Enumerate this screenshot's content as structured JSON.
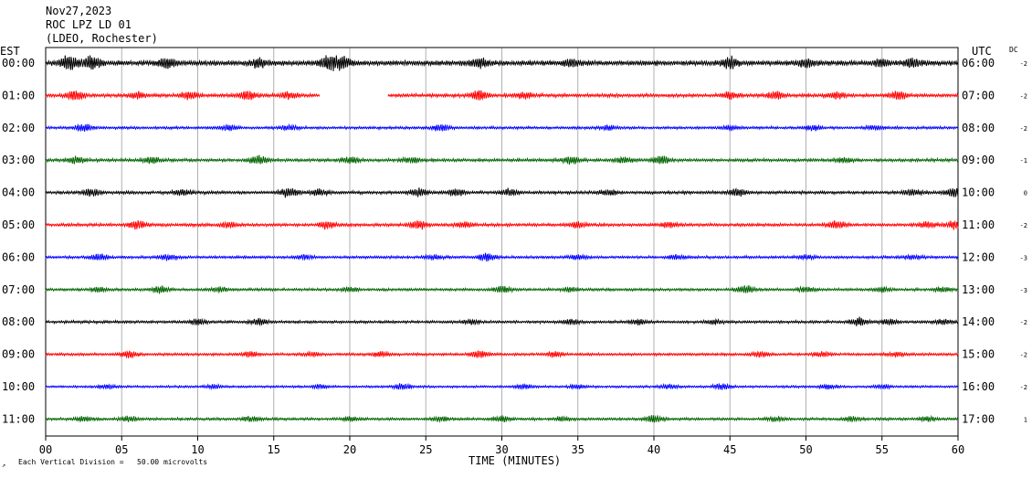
{
  "header": {
    "date": "Nov27,2023",
    "station": "ROC LPZ LD 01",
    "network": "(LDEO, Rochester)"
  },
  "labels": {
    "left_zone": "EST",
    "right_zone": "UTC",
    "dc": "DC",
    "xlabel": "TIME (MINUTES)",
    "scale_note": "Each Vertical Division =   50.00 microvolts",
    "corner_mark": "↗"
  },
  "colors": {
    "black": "#000000",
    "red": "#ff0000",
    "blue": "#0000ff",
    "green": "#006400",
    "grid": "#b0b0b0"
  },
  "chart_data": {
    "type": "line",
    "title": "",
    "xlabel": "TIME (MINUTES)",
    "xlim": [
      0,
      60
    ],
    "x_ticks": [
      "00",
      "05",
      "10",
      "15",
      "20",
      "25",
      "30",
      "35",
      "40",
      "45",
      "50",
      "55",
      "60"
    ],
    "grid": true,
    "rows": [
      {
        "est": "00:00",
        "utc": "06:00",
        "dc": "-2",
        "color": "black",
        "amp": 1.3,
        "seed": 11,
        "gaps": [],
        "bursts": [
          [
            1.5,
            1.0
          ],
          [
            3,
            0.9
          ],
          [
            8,
            0.7
          ],
          [
            14,
            0.6
          ],
          [
            18.6,
            1.0
          ],
          [
            19.5,
            0.8
          ],
          [
            28.5,
            0.6
          ],
          [
            34.5,
            0.5
          ],
          [
            45,
            0.7
          ],
          [
            50,
            0.5
          ],
          [
            55,
            0.5
          ],
          [
            57,
            0.6
          ]
        ]
      },
      {
        "est": "01:00",
        "utc": "07:00",
        "dc": "-2",
        "color": "red",
        "amp": 0.9,
        "seed": 23,
        "gaps": [
          [
            18,
            22.5
          ]
        ],
        "bursts": [
          [
            2,
            1.0
          ],
          [
            6,
            0.6
          ],
          [
            9.5,
            0.8
          ],
          [
            13.3,
            0.9
          ],
          [
            16,
            0.6
          ],
          [
            28.5,
            1.0
          ],
          [
            31.5,
            0.6
          ],
          [
            45,
            0.6
          ],
          [
            48,
            0.7
          ],
          [
            52,
            0.6
          ],
          [
            56,
            0.8
          ]
        ]
      },
      {
        "est": "02:00",
        "utc": "08:00",
        "dc": "-2",
        "color": "blue",
        "amp": 0.7,
        "seed": 37,
        "gaps": [],
        "bursts": [
          [
            2.5,
            0.9
          ],
          [
            12,
            0.6
          ],
          [
            16,
            0.6
          ],
          [
            26,
            0.9
          ],
          [
            37,
            0.5
          ],
          [
            45,
            0.5
          ],
          [
            50.5,
            0.6
          ],
          [
            54.5,
            0.5
          ]
        ]
      },
      {
        "est": "03:00",
        "utc": "09:00",
        "dc": "-1",
        "color": "green",
        "amp": 0.8,
        "seed": 41,
        "gaps": [],
        "bursts": [
          [
            2,
            0.8
          ],
          [
            7,
            0.7
          ],
          [
            14,
            0.9
          ],
          [
            20,
            0.6
          ],
          [
            24,
            0.6
          ],
          [
            34.5,
            0.8
          ],
          [
            38,
            0.6
          ],
          [
            40.5,
            0.9
          ],
          [
            52.5,
            0.5
          ]
        ]
      },
      {
        "est": "04:00",
        "utc": "10:00",
        "dc": "0",
        "color": "black",
        "amp": 0.8,
        "seed": 53,
        "gaps": [],
        "bursts": [
          [
            3,
            0.7
          ],
          [
            9,
            0.6
          ],
          [
            16,
            1.0
          ],
          [
            18,
            0.6
          ],
          [
            24.5,
            0.9
          ],
          [
            27,
            0.8
          ],
          [
            30.5,
            0.7
          ],
          [
            37,
            0.6
          ],
          [
            45.5,
            0.8
          ],
          [
            57,
            0.7
          ],
          [
            59.7,
            0.9
          ]
        ]
      },
      {
        "est": "05:00",
        "utc": "11:00",
        "dc": "-2",
        "color": "red",
        "amp": 0.8,
        "seed": 67,
        "gaps": [],
        "bursts": [
          [
            6,
            1.0
          ],
          [
            12,
            0.6
          ],
          [
            18.5,
            0.8
          ],
          [
            24.5,
            0.9
          ],
          [
            27.5,
            0.6
          ],
          [
            35,
            0.6
          ],
          [
            41,
            0.6
          ],
          [
            52,
            0.9
          ],
          [
            58,
            0.6
          ],
          [
            59.8,
            0.9
          ]
        ]
      },
      {
        "est": "06:00",
        "utc": "12:00",
        "dc": "-3",
        "color": "blue",
        "amp": 0.7,
        "seed": 71,
        "gaps": [],
        "bursts": [
          [
            3.5,
            0.8
          ],
          [
            8,
            0.6
          ],
          [
            17,
            0.6
          ],
          [
            25.5,
            0.5
          ],
          [
            29,
            1.0
          ],
          [
            35,
            0.5
          ],
          [
            41.5,
            0.5
          ],
          [
            50,
            0.5
          ],
          [
            57,
            0.5
          ]
        ]
      },
      {
        "est": "07:00",
        "utc": "13:00",
        "dc": "-3",
        "color": "green",
        "amp": 0.7,
        "seed": 83,
        "gaps": [],
        "bursts": [
          [
            3.5,
            0.6
          ],
          [
            7.5,
            0.8
          ],
          [
            11.5,
            0.5
          ],
          [
            20,
            0.5
          ],
          [
            30,
            0.8
          ],
          [
            34.5,
            0.5
          ],
          [
            46,
            1.0
          ],
          [
            50,
            0.6
          ],
          [
            55,
            0.5
          ],
          [
            59,
            0.6
          ]
        ]
      },
      {
        "est": "08:00",
        "utc": "14:00",
        "dc": "-2",
        "color": "black",
        "amp": 0.7,
        "seed": 97,
        "gaps": [],
        "bursts": [
          [
            10,
            0.6
          ],
          [
            14,
            0.8
          ],
          [
            28,
            0.5
          ],
          [
            34.5,
            0.6
          ],
          [
            39,
            0.6
          ],
          [
            44,
            0.5
          ],
          [
            53.5,
            1.0
          ],
          [
            55.5,
            0.6
          ],
          [
            59,
            0.6
          ]
        ]
      },
      {
        "est": "09:00",
        "utc": "15:00",
        "dc": "-2",
        "color": "red",
        "amp": 0.7,
        "seed": 101,
        "gaps": [],
        "bursts": [
          [
            5.5,
            0.8
          ],
          [
            13.5,
            0.6
          ],
          [
            17.5,
            0.5
          ],
          [
            22,
            0.6
          ],
          [
            28.5,
            1.0
          ],
          [
            33.5,
            0.6
          ],
          [
            47,
            0.6
          ],
          [
            51,
            0.6
          ],
          [
            56,
            0.5
          ]
        ]
      },
      {
        "est": "10:00",
        "utc": "16:00",
        "dc": "-2",
        "color": "blue",
        "amp": 0.6,
        "seed": 113,
        "gaps": [],
        "bursts": [
          [
            4,
            0.5
          ],
          [
            11,
            0.5
          ],
          [
            18,
            0.6
          ],
          [
            23.5,
            0.8
          ],
          [
            31.5,
            0.6
          ],
          [
            35,
            0.6
          ],
          [
            41,
            0.6
          ],
          [
            44.5,
            0.8
          ],
          [
            51.5,
            0.6
          ],
          [
            55,
            0.5
          ]
        ]
      },
      {
        "est": "11:00",
        "utc": "17:00",
        "dc": "1",
        "color": "green",
        "amp": 0.7,
        "seed": 127,
        "gaps": [],
        "bursts": [
          [
            2.5,
            0.5
          ],
          [
            5.5,
            0.6
          ],
          [
            13.5,
            0.6
          ],
          [
            20,
            0.5
          ],
          [
            26,
            0.5
          ],
          [
            30,
            0.6
          ],
          [
            34,
            0.5
          ],
          [
            40,
            1.0
          ],
          [
            48,
            0.5
          ],
          [
            53,
            0.5
          ],
          [
            58,
            0.5
          ]
        ]
      }
    ]
  }
}
